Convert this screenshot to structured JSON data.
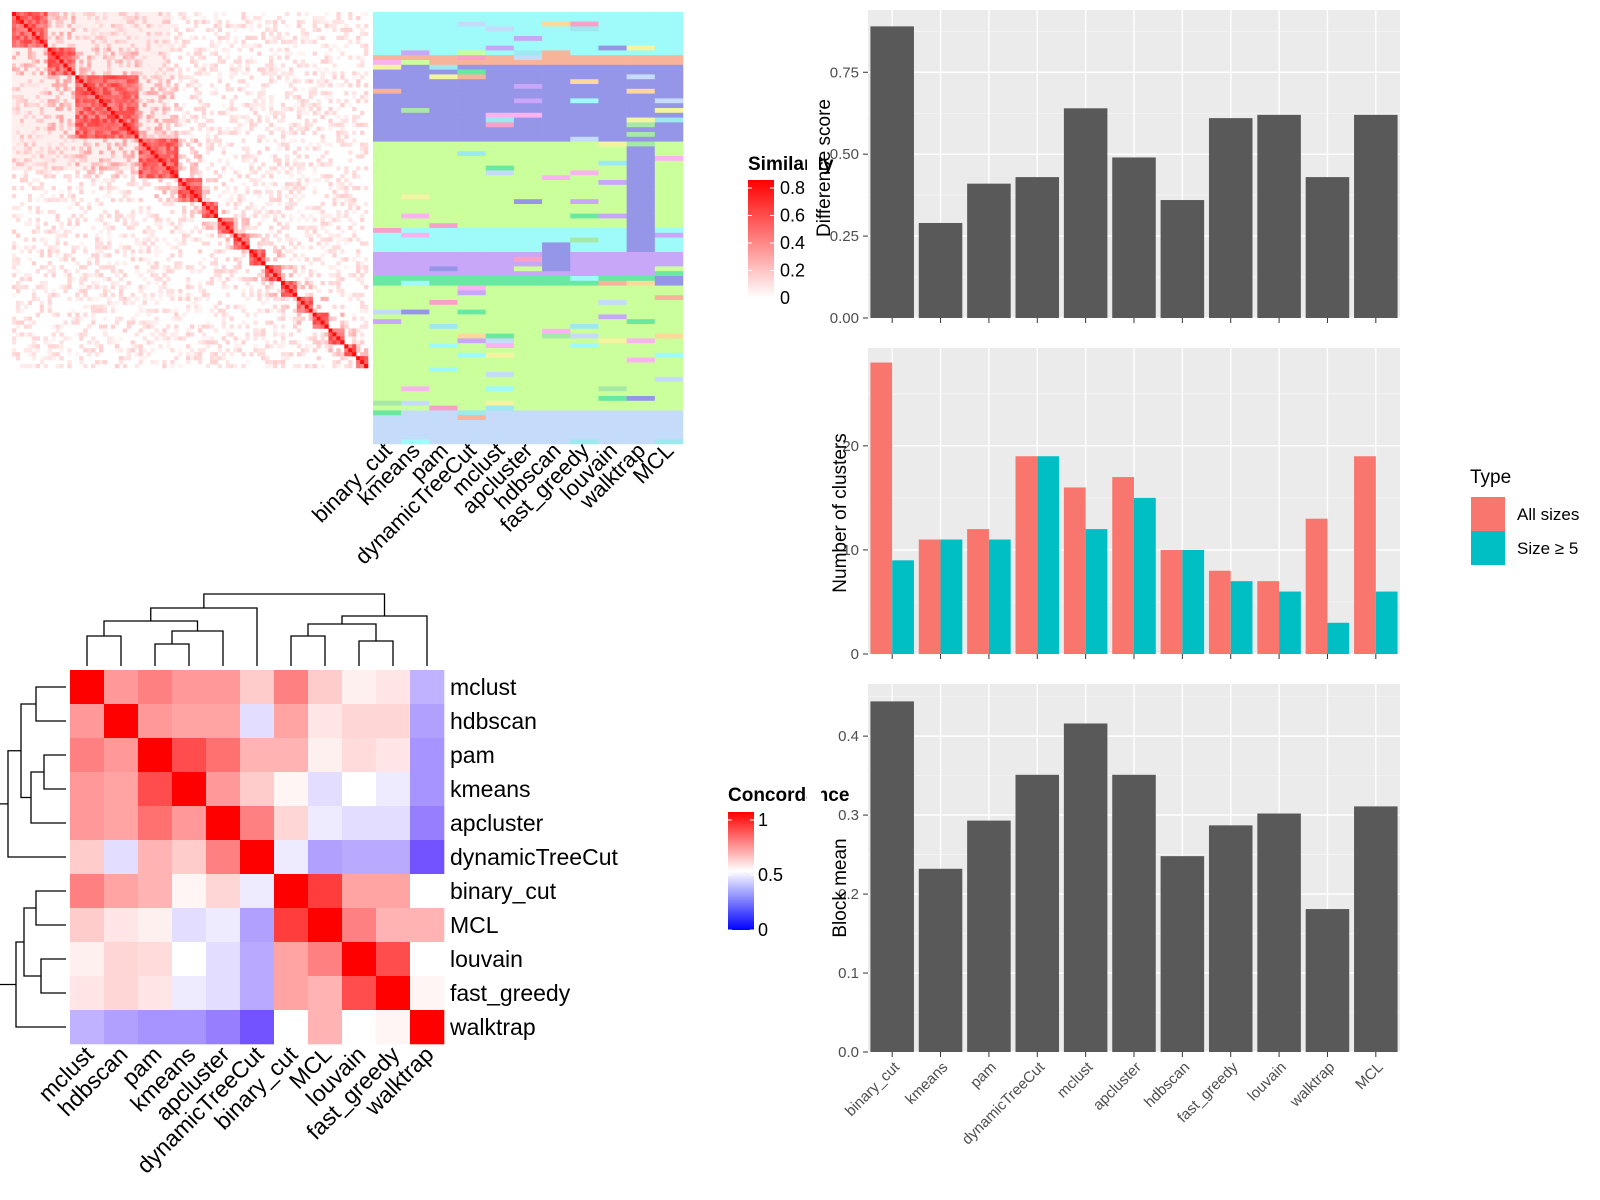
{
  "methods_order": [
    "binary_cut",
    "kmeans",
    "pam",
    "dynamicTreeCut",
    "mclust",
    "apcluster",
    "hdbscan",
    "fast_greedy",
    "louvain",
    "walktrap",
    "MCL"
  ],
  "chart_data": [
    {
      "type": "heatmap",
      "id": "similarity_matrix",
      "legend_title": "Similarity",
      "legend_ticks": [
        "0",
        "0.2",
        "0.4",
        "0.6",
        "0.8"
      ],
      "note": "term similarity matrix with block-diagonal structure"
    },
    {
      "type": "heatmap",
      "id": "cluster_assignment",
      "columns": [
        "binary_cut",
        "kmeans",
        "pam",
        "dynamicTreeCut",
        "mclust",
        "apcluster",
        "hdbscan",
        "fast_greedy",
        "louvain",
        "walktrap",
        "MCL"
      ]
    },
    {
      "type": "heatmap",
      "id": "concordance_matrix",
      "legend_title": "Concordance",
      "legend_ticks": [
        "0",
        "0.5",
        "1"
      ],
      "rows": [
        "mclust",
        "hdbscan",
        "pam",
        "kmeans",
        "apcluster",
        "dynamicTreeCut",
        "binary_cut",
        "MCL",
        "louvain",
        "fast_greedy",
        "walktrap"
      ],
      "columns": [
        "mclust",
        "hdbscan",
        "pam",
        "kmeans",
        "apcluster",
        "dynamicTreeCut",
        "binary_cut",
        "MCL",
        "louvain",
        "fast_greedy",
        "walktrap"
      ],
      "values": [
        [
          1.0,
          0.7,
          0.75,
          0.7,
          0.7,
          0.6,
          0.75,
          0.6,
          0.53,
          0.55,
          0.32
        ],
        [
          0.7,
          1.0,
          0.7,
          0.68,
          0.68,
          0.42,
          0.68,
          0.55,
          0.58,
          0.58,
          0.28
        ],
        [
          0.75,
          0.7,
          1.0,
          0.85,
          0.78,
          0.65,
          0.65,
          0.53,
          0.57,
          0.55,
          0.25
        ],
        [
          0.7,
          0.68,
          0.85,
          1.0,
          0.7,
          0.6,
          0.52,
          0.42,
          0.5,
          0.45,
          0.25
        ],
        [
          0.7,
          0.68,
          0.78,
          0.7,
          1.0,
          0.75,
          0.58,
          0.45,
          0.42,
          0.42,
          0.2
        ],
        [
          0.6,
          0.42,
          0.65,
          0.6,
          0.75,
          1.0,
          0.45,
          0.28,
          0.3,
          0.3,
          0.1
        ],
        [
          0.75,
          0.68,
          0.65,
          0.52,
          0.58,
          0.45,
          1.0,
          0.88,
          0.68,
          0.68,
          0.5
        ],
        [
          0.6,
          0.55,
          0.53,
          0.42,
          0.45,
          0.28,
          0.88,
          1.0,
          0.75,
          0.65,
          0.65
        ],
        [
          0.53,
          0.58,
          0.57,
          0.5,
          0.42,
          0.3,
          0.68,
          0.75,
          1.0,
          0.85,
          0.5
        ],
        [
          0.55,
          0.58,
          0.55,
          0.45,
          0.42,
          0.3,
          0.68,
          0.65,
          0.85,
          1.0,
          0.52
        ],
        [
          0.32,
          0.28,
          0.25,
          0.25,
          0.2,
          0.1,
          0.5,
          0.65,
          0.5,
          0.52,
          1.0
        ]
      ]
    },
    {
      "type": "bar",
      "id": "difference_score",
      "categories": [
        "binary_cut",
        "kmeans",
        "pam",
        "dynamicTreeCut",
        "mclust",
        "apcluster",
        "hdbscan",
        "fast_greedy",
        "louvain",
        "walktrap",
        "MCL"
      ],
      "values": [
        0.89,
        0.29,
        0.41,
        0.43,
        0.64,
        0.49,
        0.36,
        0.61,
        0.62,
        0.43,
        0.62
      ],
      "ylabel": "Difference score",
      "ylim": [
        0,
        0.94
      ],
      "yticks": [
        "0.00",
        "0.25",
        "0.50",
        "0.75"
      ],
      "grid": true
    },
    {
      "type": "bar",
      "id": "number_of_clusters",
      "categories": [
        "binary_cut",
        "kmeans",
        "pam",
        "dynamicTreeCut",
        "mclust",
        "apcluster",
        "hdbscan",
        "fast_greedy",
        "louvain",
        "walktrap",
        "MCL"
      ],
      "series": [
        {
          "name": "All sizes",
          "color": "#f8766d",
          "values": [
            28,
            11,
            12,
            19,
            16,
            17,
            10,
            8,
            7,
            13,
            19
          ]
        },
        {
          "name": "Size ≥ 5",
          "color": "#00bfc4",
          "values": [
            9,
            11,
            11,
            19,
            12,
            15,
            10,
            7,
            6,
            3,
            6
          ]
        }
      ],
      "ylabel": "Number of clusters",
      "ylim": [
        0,
        29.4
      ],
      "yticks": [
        "0",
        "10",
        "20"
      ],
      "legend_title": "Type",
      "legend_position": "right",
      "grid": true
    },
    {
      "type": "bar",
      "id": "block_mean",
      "categories": [
        "binary_cut",
        "kmeans",
        "pam",
        "dynamicTreeCut",
        "mclust",
        "apcluster",
        "hdbscan",
        "fast_greedy",
        "louvain",
        "walktrap",
        "MCL"
      ],
      "values": [
        0.444,
        0.232,
        0.293,
        0.351,
        0.416,
        0.351,
        0.248,
        0.287,
        0.302,
        0.181,
        0.311
      ],
      "ylabel": "Block mean",
      "ylim": [
        0,
        0.466
      ],
      "yticks": [
        "0.0",
        "0.1",
        "0.2",
        "0.3",
        "0.4"
      ],
      "grid": true
    }
  ]
}
